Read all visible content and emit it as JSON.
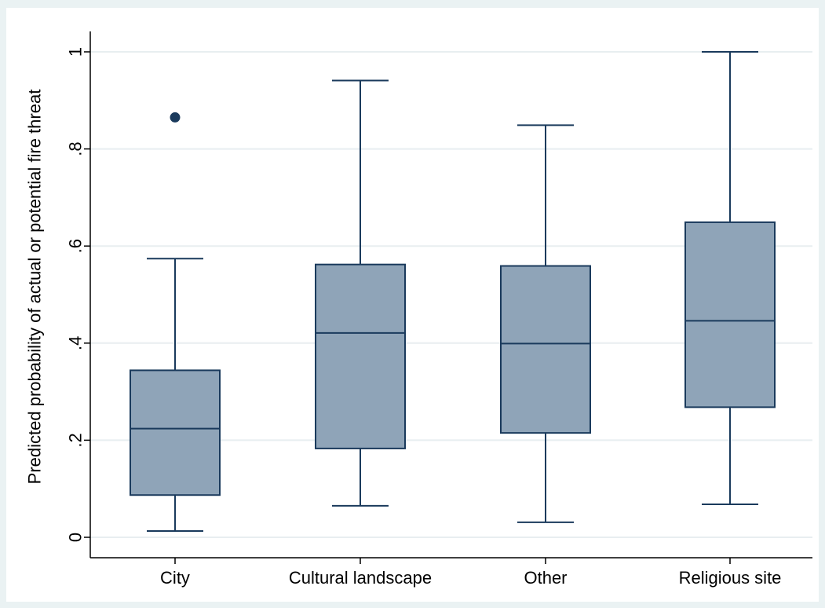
{
  "chart_data": {
    "type": "box",
    "title": "",
    "xlabel": "",
    "ylabel": "Predicted probability of actual or potential fire threat",
    "ylim": [
      0,
      1.05
    ],
    "y_ticks": [
      0,
      0.2,
      0.4,
      0.6,
      0.8,
      1.0
    ],
    "y_tick_labels": [
      "0",
      ".2",
      ".4",
      ".6",
      ".8",
      "1"
    ],
    "grid": true,
    "legend": "none",
    "colors": {
      "box_fill": "#8fa4b8",
      "box_stroke": "#1a3a5c",
      "grid": "#e8eef0",
      "background": "#eaf2f3"
    },
    "categories": [
      "City",
      "Cultural landscape",
      "Other",
      "Religious site"
    ],
    "boxes": [
      {
        "category": "City",
        "whisker_low": 0.013,
        "q1": 0.087,
        "median": 0.224,
        "q3": 0.344,
        "whisker_high": 0.574,
        "outliers": [
          0.865
        ]
      },
      {
        "category": "Cultural landscape",
        "whisker_low": 0.065,
        "q1": 0.183,
        "median": 0.421,
        "q3": 0.562,
        "whisker_high": 0.941,
        "outliers": []
      },
      {
        "category": "Other",
        "whisker_low": 0.031,
        "q1": 0.215,
        "median": 0.399,
        "q3": 0.559,
        "whisker_high": 0.849,
        "outliers": []
      },
      {
        "category": "Religious site",
        "whisker_low": 0.068,
        "q1": 0.268,
        "median": 0.446,
        "q3": 0.649,
        "whisker_high": 1.0,
        "outliers": []
      }
    ]
  }
}
